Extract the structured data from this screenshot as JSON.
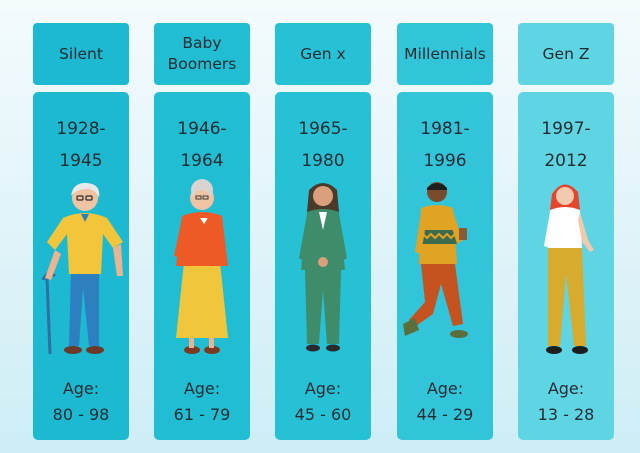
{
  "generations": [
    {
      "name": "Silent",
      "years_start": "1928-",
      "years_end": "1945",
      "age_label": "Age:",
      "age_range": "80 - 98"
    },
    {
      "name_line1": "Baby",
      "name_line2": "Boomers",
      "years_start": "1946-",
      "years_end": "1964",
      "age_label": "Age:",
      "age_range": "61 - 79"
    },
    {
      "name": "Gen x",
      "years_start": "1965-",
      "years_end": "1980",
      "age_label": "Age:",
      "age_range": "45 - 60"
    },
    {
      "name": "Millennials",
      "years_start": "1981-",
      "years_end": "1996",
      "age_label": "Age:",
      "age_range": "44 - 29"
    },
    {
      "name": "Gen Z",
      "years_start": "1997-",
      "years_end": "2012",
      "age_label": "Age:",
      "age_range": "13 - 28"
    }
  ],
  "colors": {
    "teal_dark": "#1cb9d1",
    "teal_light": "#5fd5e4",
    "text": "#232c33"
  },
  "illustrations": [
    "elderly-man-with-cane",
    "elderly-woman-orange-cardigan",
    "woman-green-suit",
    "young-man-with-coffee",
    "young-woman-yellow-pants"
  ]
}
